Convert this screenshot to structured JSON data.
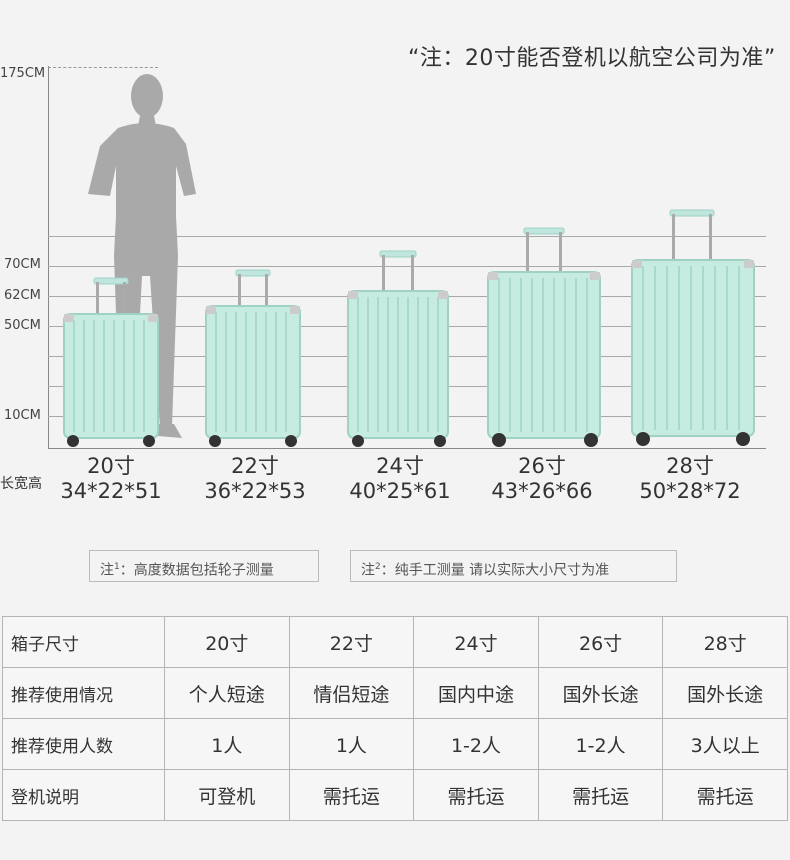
{
  "top_note": "“注：20寸能否登机以航空公司为准”",
  "height_scale": {
    "labels": [
      "175CM",
      "70CM",
      "62CM",
      "50CM",
      "10CM"
    ]
  },
  "dimension_row_label": "长宽高",
  "suitcases": [
    {
      "size": "20寸",
      "dims": "34*22*51"
    },
    {
      "size": "22寸",
      "dims": "36*22*53"
    },
    {
      "size": "24寸",
      "dims": "40*25*61"
    },
    {
      "size": "26寸",
      "dims": "43*26*66"
    },
    {
      "size": "28寸",
      "dims": "50*28*72"
    }
  ],
  "notes": {
    "note1_prefix": "注",
    "note1_sup": "1",
    "note1_text": "：高度数据包括轮子测量",
    "note2_prefix": "注",
    "note2_sup": "2",
    "note2_text": "：纯手工测量 请以实际大小尺寸为准"
  },
  "table": {
    "rows": [
      {
        "label": "箱子尺寸",
        "cells": [
          "20寸",
          "22寸",
          "24寸",
          "26寸",
          "28寸"
        ]
      },
      {
        "label": "推荐使用情况",
        "cells": [
          "个人短途",
          "情侣短途",
          "国内中途",
          "国外长途",
          "国外长途"
        ]
      },
      {
        "label": "推荐使用人数",
        "cells": [
          "1人",
          "1人",
          "1-2人",
          "1-2人",
          "3人以上"
        ]
      },
      {
        "label": "登机说明",
        "cells": [
          "可登机",
          "需托运",
          "需托运",
          "需托运",
          "需托运"
        ]
      }
    ]
  },
  "colors": {
    "suitcase_body": "#bfe6dc",
    "suitcase_edge": "#9fd2c5",
    "person": "#a9a9a9",
    "background": "#f3f3f3"
  }
}
